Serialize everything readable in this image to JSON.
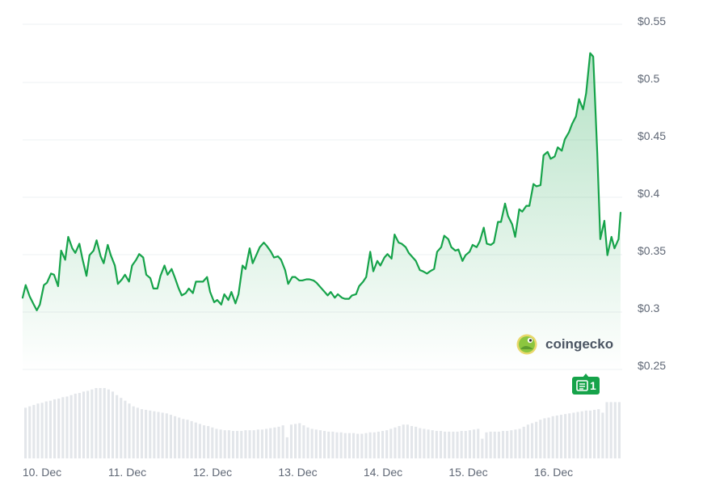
{
  "chart_data": {
    "type": "area",
    "title": "",
    "xlabel": "",
    "ylabel": "",
    "x_tick_labels": [
      "10. Dec",
      "11. Dec",
      "12. Dec",
      "13. Dec",
      "14. Dec",
      "15. Dec",
      "16. Dec"
    ],
    "y_tick_labels": [
      "$0.55",
      "$0.5",
      "$0.45",
      "$0.4",
      "$0.35",
      "$0.3",
      "$0.25"
    ],
    "y_ticks": [
      0.55,
      0.5,
      0.45,
      0.4,
      0.35,
      0.3,
      0.25
    ],
    "ylim": [
      0.25,
      0.55
    ],
    "xlim": [
      0,
      7.0
    ],
    "grid": true,
    "legend": "none",
    "series": [
      {
        "color": "#16a34a",
        "fill": "#16a34a",
        "points": [
          [
            0.0,
            0.309
          ],
          [
            0.03,
            0.32
          ],
          [
            0.07,
            0.31
          ],
          [
            0.11,
            0.303
          ],
          [
            0.14,
            0.298
          ],
          [
            0.17,
            0.303
          ],
          [
            0.21,
            0.32
          ],
          [
            0.24,
            0.322
          ],
          [
            0.28,
            0.33
          ],
          [
            0.31,
            0.329
          ],
          [
            0.35,
            0.319
          ],
          [
            0.38,
            0.35
          ],
          [
            0.42,
            0.342
          ],
          [
            0.45,
            0.362
          ],
          [
            0.49,
            0.352
          ],
          [
            0.52,
            0.348
          ],
          [
            0.56,
            0.356
          ],
          [
            0.59,
            0.343
          ],
          [
            0.63,
            0.328
          ],
          [
            0.66,
            0.346
          ],
          [
            0.7,
            0.35
          ],
          [
            0.73,
            0.359
          ],
          [
            0.77,
            0.345
          ],
          [
            0.8,
            0.339
          ],
          [
            0.84,
            0.355
          ],
          [
            0.87,
            0.346
          ],
          [
            0.91,
            0.337
          ],
          [
            0.94,
            0.321
          ],
          [
            0.98,
            0.325
          ],
          [
            1.01,
            0.329
          ],
          [
            1.05,
            0.323
          ],
          [
            1.08,
            0.337
          ],
          [
            1.12,
            0.342
          ],
          [
            1.15,
            0.347
          ],
          [
            1.19,
            0.344
          ],
          [
            1.22,
            0.329
          ],
          [
            1.26,
            0.326
          ],
          [
            1.29,
            0.317
          ],
          [
            1.33,
            0.317
          ],
          [
            1.36,
            0.328
          ],
          [
            1.4,
            0.337
          ],
          [
            1.43,
            0.329
          ],
          [
            1.47,
            0.334
          ],
          [
            1.5,
            0.327
          ],
          [
            1.54,
            0.317
          ],
          [
            1.57,
            0.311
          ],
          [
            1.61,
            0.313
          ],
          [
            1.64,
            0.317
          ],
          [
            1.68,
            0.313
          ],
          [
            1.71,
            0.323
          ],
          [
            1.75,
            0.323
          ],
          [
            1.78,
            0.323
          ],
          [
            1.82,
            0.327
          ],
          [
            1.85,
            0.314
          ],
          [
            1.89,
            0.305
          ],
          [
            1.92,
            0.307
          ],
          [
            1.96,
            0.303
          ],
          [
            1.99,
            0.312
          ],
          [
            2.03,
            0.307
          ],
          [
            2.06,
            0.314
          ],
          [
            2.1,
            0.304
          ],
          [
            2.13,
            0.312
          ],
          [
            2.17,
            0.337
          ],
          [
            2.2,
            0.334
          ],
          [
            2.24,
            0.352
          ],
          [
            2.27,
            0.339
          ],
          [
            2.31,
            0.347
          ],
          [
            2.34,
            0.353
          ],
          [
            2.38,
            0.357
          ],
          [
            2.41,
            0.354
          ],
          [
            2.45,
            0.349
          ],
          [
            2.48,
            0.344
          ],
          [
            2.52,
            0.345
          ],
          [
            2.55,
            0.342
          ],
          [
            2.59,
            0.333
          ],
          [
            2.62,
            0.321
          ],
          [
            2.66,
            0.327
          ],
          [
            2.69,
            0.327
          ],
          [
            2.73,
            0.324
          ],
          [
            2.76,
            0.324
          ],
          [
            2.8,
            0.325
          ],
          [
            2.83,
            0.325
          ],
          [
            2.87,
            0.324
          ],
          [
            2.9,
            0.322
          ],
          [
            2.94,
            0.318
          ],
          [
            2.97,
            0.315
          ],
          [
            3.01,
            0.311
          ],
          [
            3.04,
            0.314
          ],
          [
            3.08,
            0.309
          ],
          [
            3.11,
            0.312
          ],
          [
            3.15,
            0.309
          ],
          [
            3.18,
            0.308
          ],
          [
            3.22,
            0.308
          ],
          [
            3.25,
            0.311
          ],
          [
            3.29,
            0.312
          ],
          [
            3.32,
            0.319
          ],
          [
            3.36,
            0.323
          ],
          [
            3.39,
            0.327
          ],
          [
            3.43,
            0.349
          ],
          [
            3.46,
            0.332
          ],
          [
            3.5,
            0.341
          ],
          [
            3.53,
            0.337
          ],
          [
            3.57,
            0.344
          ],
          [
            3.6,
            0.347
          ],
          [
            3.64,
            0.343
          ],
          [
            3.67,
            0.364
          ],
          [
            3.71,
            0.357
          ],
          [
            3.74,
            0.356
          ],
          [
            3.78,
            0.353
          ],
          [
            3.81,
            0.348
          ],
          [
            3.85,
            0.344
          ],
          [
            3.88,
            0.341
          ],
          [
            3.92,
            0.333
          ],
          [
            3.95,
            0.332
          ],
          [
            3.99,
            0.33
          ],
          [
            4.02,
            0.332
          ],
          [
            4.06,
            0.334
          ],
          [
            4.09,
            0.349
          ],
          [
            4.13,
            0.353
          ],
          [
            4.16,
            0.363
          ],
          [
            4.2,
            0.36
          ],
          [
            4.23,
            0.353
          ],
          [
            4.27,
            0.35
          ],
          [
            4.3,
            0.351
          ],
          [
            4.34,
            0.341
          ],
          [
            4.37,
            0.346
          ],
          [
            4.41,
            0.349
          ],
          [
            4.44,
            0.355
          ],
          [
            4.48,
            0.353
          ],
          [
            4.51,
            0.358
          ],
          [
            4.55,
            0.37
          ],
          [
            4.58,
            0.356
          ],
          [
            4.62,
            0.355
          ],
          [
            4.65,
            0.357
          ],
          [
            4.69,
            0.375
          ],
          [
            4.72,
            0.375
          ],
          [
            4.76,
            0.391
          ],
          [
            4.79,
            0.38
          ],
          [
            4.83,
            0.373
          ],
          [
            4.86,
            0.362
          ],
          [
            4.9,
            0.386
          ],
          [
            4.93,
            0.384
          ],
          [
            4.97,
            0.389
          ],
          [
            5.0,
            0.389
          ],
          [
            5.04,
            0.408
          ],
          [
            5.07,
            0.406
          ],
          [
            5.11,
            0.407
          ],
          [
            5.14,
            0.433
          ],
          [
            5.18,
            0.436
          ],
          [
            5.21,
            0.43
          ],
          [
            5.25,
            0.432
          ],
          [
            5.28,
            0.44
          ],
          [
            5.32,
            0.437
          ],
          [
            5.35,
            0.447
          ],
          [
            5.39,
            0.453
          ],
          [
            5.42,
            0.46
          ],
          [
            5.46,
            0.467
          ],
          [
            5.49,
            0.482
          ],
          [
            5.53,
            0.473
          ],
          [
            5.56,
            0.487
          ],
          [
            5.6,
            0.522
          ],
          [
            5.63,
            0.519
          ],
          [
            5.67,
            0.435
          ],
          [
            5.7,
            0.36
          ],
          [
            5.74,
            0.376
          ],
          [
            5.77,
            0.346
          ],
          [
            5.81,
            0.362
          ],
          [
            5.84,
            0.352
          ],
          [
            5.88,
            0.36
          ],
          [
            5.9,
            0.383
          ]
        ]
      }
    ],
    "volume": {
      "color": "#e3e6ea",
      "values": [
        0.72,
        0.74,
        0.76,
        0.78,
        0.79,
        0.81,
        0.82,
        0.84,
        0.85,
        0.87,
        0.88,
        0.9,
        0.92,
        0.93,
        0.95,
        0.96,
        0.98,
        1.0,
        1.0,
        1.0,
        0.98,
        0.95,
        0.9,
        0.86,
        0.82,
        0.78,
        0.74,
        0.72,
        0.7,
        0.69,
        0.68,
        0.67,
        0.66,
        0.65,
        0.64,
        0.62,
        0.6,
        0.58,
        0.56,
        0.55,
        0.53,
        0.51,
        0.49,
        0.47,
        0.46,
        0.44,
        0.42,
        0.41,
        0.4,
        0.4,
        0.39,
        0.39,
        0.39,
        0.4,
        0.4,
        0.4,
        0.41,
        0.41,
        0.42,
        0.43,
        0.44,
        0.45,
        0.47,
        0.3,
        0.48,
        0.49,
        0.5,
        0.47,
        0.44,
        0.42,
        0.41,
        0.4,
        0.39,
        0.38,
        0.38,
        0.37,
        0.37,
        0.36,
        0.36,
        0.36,
        0.35,
        0.35,
        0.36,
        0.37,
        0.37,
        0.38,
        0.39,
        0.4,
        0.42,
        0.44,
        0.46,
        0.48,
        0.48,
        0.46,
        0.45,
        0.43,
        0.42,
        0.41,
        0.4,
        0.39,
        0.39,
        0.38,
        0.38,
        0.38,
        0.38,
        0.39,
        0.39,
        0.4,
        0.41,
        0.42,
        0.28,
        0.37,
        0.38,
        0.38,
        0.38,
        0.39,
        0.39,
        0.4,
        0.41,
        0.42,
        0.45,
        0.48,
        0.5,
        0.52,
        0.55,
        0.57,
        0.58,
        0.6,
        0.61,
        0.62,
        0.63,
        0.64,
        0.65,
        0.66,
        0.67,
        0.68,
        0.68,
        0.69,
        0.7,
        0.65,
        0.8,
        0.8,
        0.8,
        0.8
      ]
    }
  },
  "brand": {
    "name": "coingecko",
    "logo_icon": "gecko-logo"
  },
  "badge": {
    "icon": "news-icon",
    "count": "1",
    "color": "#16a34a"
  }
}
